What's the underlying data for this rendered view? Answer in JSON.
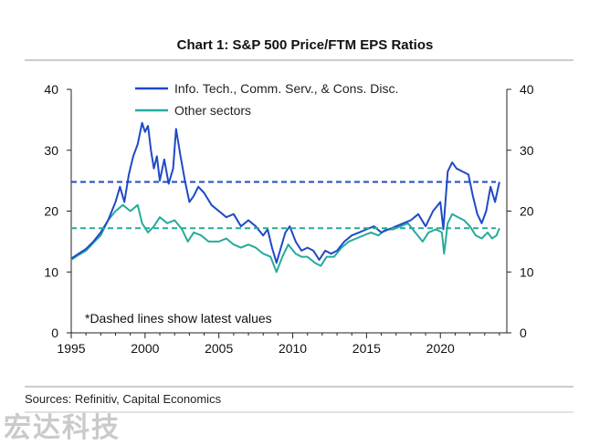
{
  "chart_data": {
    "type": "line",
    "title": "Chart 1: S&P 500 Price/FTM EPS Ratios",
    "xlim": [
      1995,
      2024.5
    ],
    "ylim": [
      0,
      40
    ],
    "ylim_right": [
      0,
      40
    ],
    "x_ticks": [
      1995,
      2000,
      2005,
      2010,
      2015,
      2020
    ],
    "y_ticks": [
      0,
      10,
      20,
      30,
      40
    ],
    "grid": false,
    "legend_position": "top-center",
    "annotation": "*Dashed lines show latest values",
    "source": "Sources: Refinitiv, Capital Economics",
    "series": [
      {
        "name": "Info. Tech., Comm. Serv., & Cons. Disc.",
        "color": "#1f49c7",
        "latest_value": 24.8,
        "points": [
          [
            1995.0,
            12.2
          ],
          [
            1995.5,
            13.0
          ],
          [
            1996.0,
            13.8
          ],
          [
            1996.5,
            15.0
          ],
          [
            1997.0,
            16.5
          ],
          [
            1997.5,
            18.5
          ],
          [
            1998.0,
            21.5
          ],
          [
            1998.3,
            24.0
          ],
          [
            1998.6,
            21.5
          ],
          [
            1998.9,
            26.0
          ],
          [
            1999.2,
            29.0
          ],
          [
            1999.5,
            31.0
          ],
          [
            1999.8,
            34.5
          ],
          [
            2000.0,
            33.0
          ],
          [
            2000.2,
            34.0
          ],
          [
            2000.4,
            30.0
          ],
          [
            2000.6,
            27.0
          ],
          [
            2000.8,
            29.0
          ],
          [
            2001.0,
            25.0
          ],
          [
            2001.3,
            28.5
          ],
          [
            2001.6,
            24.5
          ],
          [
            2001.9,
            27.0
          ],
          [
            2002.1,
            33.5
          ],
          [
            2002.4,
            29.0
          ],
          [
            2002.7,
            25.0
          ],
          [
            2003.0,
            21.5
          ],
          [
            2003.3,
            22.5
          ],
          [
            2003.6,
            24.0
          ],
          [
            2004.0,
            23.0
          ],
          [
            2004.5,
            21.0
          ],
          [
            2005.0,
            20.0
          ],
          [
            2005.5,
            19.0
          ],
          [
            2006.0,
            19.5
          ],
          [
            2006.5,
            17.5
          ],
          [
            2007.0,
            18.5
          ],
          [
            2007.5,
            17.5
          ],
          [
            2008.0,
            16.0
          ],
          [
            2008.3,
            17.0
          ],
          [
            2008.6,
            14.0
          ],
          [
            2008.9,
            11.5
          ],
          [
            2009.2,
            14.0
          ],
          [
            2009.5,
            16.5
          ],
          [
            2009.8,
            17.5
          ],
          [
            2010.2,
            15.0
          ],
          [
            2010.6,
            13.5
          ],
          [
            2011.0,
            14.0
          ],
          [
            2011.4,
            13.5
          ],
          [
            2011.8,
            12.0
          ],
          [
            2012.2,
            13.5
          ],
          [
            2012.6,
            13.0
          ],
          [
            2013.0,
            13.5
          ],
          [
            2013.5,
            15.0
          ],
          [
            2014.0,
            16.0
          ],
          [
            2014.5,
            16.5
          ],
          [
            2015.0,
            17.0
          ],
          [
            2015.5,
            17.5
          ],
          [
            2016.0,
            16.5
          ],
          [
            2016.5,
            17.0
          ],
          [
            2017.0,
            17.5
          ],
          [
            2017.5,
            18.0
          ],
          [
            2018.0,
            18.5
          ],
          [
            2018.5,
            19.5
          ],
          [
            2019.0,
            17.5
          ],
          [
            2019.5,
            20.0
          ],
          [
            2020.0,
            21.5
          ],
          [
            2020.2,
            17.0
          ],
          [
            2020.5,
            26.5
          ],
          [
            2020.8,
            28.0
          ],
          [
            2021.1,
            27.0
          ],
          [
            2021.5,
            26.5
          ],
          [
            2021.9,
            26.0
          ],
          [
            2022.2,
            22.5
          ],
          [
            2022.5,
            19.5
          ],
          [
            2022.8,
            18.0
          ],
          [
            2023.1,
            20.0
          ],
          [
            2023.4,
            24.0
          ],
          [
            2023.7,
            21.5
          ],
          [
            2024.0,
            24.8
          ]
        ]
      },
      {
        "name": "Other sectors",
        "color": "#26ab9b",
        "latest_value": 17.2,
        "points": [
          [
            1995.0,
            12.0
          ],
          [
            1995.5,
            12.8
          ],
          [
            1996.0,
            13.5
          ],
          [
            1996.5,
            14.8
          ],
          [
            1997.0,
            16.0
          ],
          [
            1997.5,
            18.5
          ],
          [
            1998.0,
            20.0
          ],
          [
            1998.5,
            21.0
          ],
          [
            1999.0,
            20.0
          ],
          [
            1999.5,
            21.0
          ],
          [
            1999.8,
            18.0
          ],
          [
            2000.2,
            16.5
          ],
          [
            2000.6,
            17.5
          ],
          [
            2001.0,
            19.0
          ],
          [
            2001.5,
            18.0
          ],
          [
            2002.0,
            18.5
          ],
          [
            2002.5,
            17.0
          ],
          [
            2002.9,
            15.0
          ],
          [
            2003.3,
            16.5
          ],
          [
            2003.8,
            16.0
          ],
          [
            2004.3,
            15.0
          ],
          [
            2005.0,
            15.0
          ],
          [
            2005.5,
            15.5
          ],
          [
            2006.0,
            14.5
          ],
          [
            2006.5,
            14.0
          ],
          [
            2007.0,
            14.5
          ],
          [
            2007.5,
            14.0
          ],
          [
            2008.0,
            13.0
          ],
          [
            2008.5,
            12.5
          ],
          [
            2008.9,
            10.0
          ],
          [
            2009.3,
            12.5
          ],
          [
            2009.7,
            14.5
          ],
          [
            2010.2,
            13.0
          ],
          [
            2010.6,
            12.5
          ],
          [
            2011.0,
            12.5
          ],
          [
            2011.5,
            11.5
          ],
          [
            2011.9,
            11.0
          ],
          [
            2012.3,
            12.5
          ],
          [
            2012.8,
            12.5
          ],
          [
            2013.3,
            14.0
          ],
          [
            2013.8,
            15.0
          ],
          [
            2014.3,
            15.5
          ],
          [
            2014.8,
            16.0
          ],
          [
            2015.3,
            16.5
          ],
          [
            2015.8,
            16.0
          ],
          [
            2016.3,
            17.0
          ],
          [
            2016.8,
            17.0
          ],
          [
            2017.3,
            17.5
          ],
          [
            2017.8,
            18.0
          ],
          [
            2018.3,
            16.5
          ],
          [
            2018.8,
            15.0
          ],
          [
            2019.2,
            16.5
          ],
          [
            2019.7,
            17.0
          ],
          [
            2020.1,
            16.5
          ],
          [
            2020.25,
            13.0
          ],
          [
            2020.5,
            18.0
          ],
          [
            2020.8,
            19.5
          ],
          [
            2021.2,
            19.0
          ],
          [
            2021.6,
            18.5
          ],
          [
            2022.0,
            17.5
          ],
          [
            2022.4,
            16.0
          ],
          [
            2022.8,
            15.5
          ],
          [
            2023.2,
            16.5
          ],
          [
            2023.5,
            15.5
          ],
          [
            2023.8,
            16.0
          ],
          [
            2024.0,
            17.2
          ]
        ]
      }
    ]
  }
}
